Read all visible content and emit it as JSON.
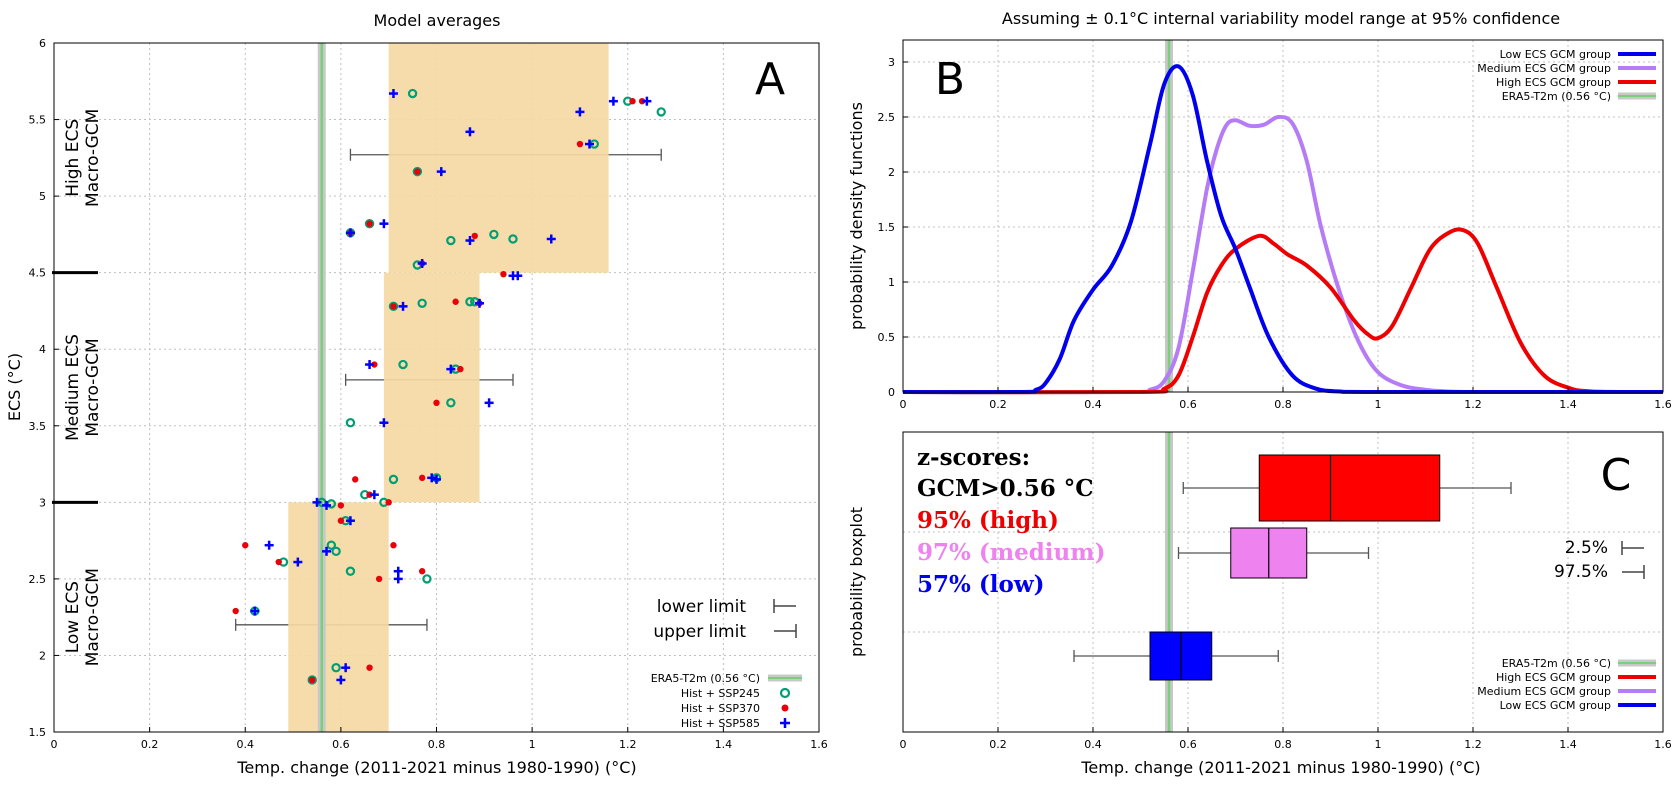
{
  "chart_data": [
    {
      "panel": "A",
      "type": "scatter",
      "title": "Model averages",
      "xlabel": "Temp. change (2011-2021 minus 1980-1990) (°C)",
      "ylabel": "ECS (°C)",
      "xlim": [
        0,
        1.6
      ],
      "ylim": [
        1.5,
        6
      ],
      "xticks": [
        0,
        0.2,
        0.4,
        0.6,
        0.8,
        1,
        1.2,
        1.4,
        1.6
      ],
      "xtick_labels": [
        "0",
        "0.2",
        "0.4",
        "0.6",
        "0.8",
        "1",
        "1.2",
        "1.4",
        "1.6"
      ],
      "yticks": [
        1.5,
        2,
        2.5,
        3,
        3.5,
        4,
        4.5,
        5,
        5.5,
        6
      ],
      "ytick_labels": [
        "1.5",
        "2",
        "2.5",
        "3",
        "3.5",
        "4",
        "4.5",
        "5",
        "5.5",
        "6"
      ],
      "group_labels": [
        {
          "line1": "High ECS",
          "line2": "Macro-GCM",
          "y": 5.25
        },
        {
          "line1": "Medium ECS",
          "line2": "Macro-GCM",
          "y": 3.75
        },
        {
          "line1": "Low ECS",
          "line2": "Macro-GCM",
          "y": 2.25
        }
      ],
      "group_dividers": [
        3.0,
        4.5
      ],
      "era5": 0.56,
      "ranges": [
        {
          "group": "low",
          "ymin": 1.5,
          "ymax": 3.0,
          "box": [
            0.49,
            0.7
          ],
          "whisker": [
            0.38,
            0.78
          ],
          "whisker_y": 2.2
        },
        {
          "group": "medium",
          "ymin": 3.0,
          "ymax": 4.5,
          "box": [
            0.69,
            0.89
          ],
          "whisker": [
            0.61,
            0.96
          ],
          "whisker_y": 3.8
        },
        {
          "group": "high",
          "ymin": 4.5,
          "ymax": 6.0,
          "box": [
            0.7,
            1.16
          ],
          "whisker": [
            0.62,
            1.27
          ],
          "whisker_y": 5.27
        }
      ],
      "limit_legend": {
        "lower": "lower limit",
        "upper": "upper limit"
      },
      "legend": [
        "ERA5-T2m (0.56 °C)",
        "Hist + SSP245",
        "Hist + SSP370",
        "Hist + SSP585"
      ],
      "series": [
        {
          "name": "Hist + SSP245",
          "marker": "circle",
          "color": "#009e73",
          "points": [
            [
              0.75,
              5.67
            ],
            [
              1.2,
              5.62
            ],
            [
              1.27,
              5.55
            ],
            [
              0.76,
              5.16
            ],
            [
              1.13,
              5.34
            ],
            [
              0.62,
              4.76
            ],
            [
              0.66,
              4.82
            ],
            [
              0.76,
              4.55
            ],
            [
              0.83,
              4.71
            ],
            [
              0.92,
              4.75
            ],
            [
              0.96,
              4.72
            ],
            [
              0.87,
              4.31
            ],
            [
              0.88,
              4.31
            ],
            [
              0.77,
              4.3
            ],
            [
              0.71,
              4.28
            ],
            [
              0.73,
              3.9
            ],
            [
              0.84,
              3.87
            ],
            [
              0.62,
              3.52
            ],
            [
              0.83,
              3.65
            ],
            [
              0.71,
              3.15
            ],
            [
              0.8,
              3.16
            ],
            [
              0.65,
              3.05
            ],
            [
              0.69,
              3.0
            ],
            [
              0.58,
              2.99
            ],
            [
              0.56,
              3.0
            ],
            [
              0.61,
              2.88
            ],
            [
              0.58,
              2.72
            ],
            [
              0.59,
              2.68
            ],
            [
              0.62,
              2.55
            ],
            [
              0.78,
              2.5
            ],
            [
              0.42,
              2.29
            ],
            [
              0.48,
              2.61
            ],
            [
              0.59,
              1.92
            ],
            [
              0.54,
              1.84
            ]
          ]
        },
        {
          "name": "Hist + SSP370",
          "marker": "dot",
          "color": "#e8000b",
          "points": [
            [
              1.21,
              5.62
            ],
            [
              1.23,
              5.62
            ],
            [
              1.1,
              5.34
            ],
            [
              0.76,
              5.16
            ],
            [
              0.62,
              4.76
            ],
            [
              0.66,
              4.82
            ],
            [
              0.88,
              4.74
            ],
            [
              0.77,
              4.56
            ],
            [
              0.94,
              4.49
            ],
            [
              0.84,
              4.31
            ],
            [
              0.89,
              4.3
            ],
            [
              0.71,
              4.28
            ],
            [
              0.67,
              3.9
            ],
            [
              0.85,
              3.87
            ],
            [
              0.8,
              3.65
            ],
            [
              0.63,
              3.15
            ],
            [
              0.77,
              3.16
            ],
            [
              0.66,
              3.05
            ],
            [
              0.7,
              3.0
            ],
            [
              0.6,
              2.98
            ],
            [
              0.6,
              2.88
            ],
            [
              0.71,
              2.72
            ],
            [
              0.4,
              2.72
            ],
            [
              0.47,
              2.61
            ],
            [
              0.77,
              2.55
            ],
            [
              0.68,
              2.5
            ],
            [
              0.38,
              2.29
            ],
            [
              0.66,
              1.92
            ],
            [
              0.54,
              1.84
            ]
          ]
        },
        {
          "name": "Hist + SSP585",
          "marker": "plus",
          "color": "#0000ff",
          "points": [
            [
              0.71,
              5.67
            ],
            [
              1.17,
              5.62
            ],
            [
              1.24,
              5.62
            ],
            [
              1.1,
              5.55
            ],
            [
              0.87,
              5.42
            ],
            [
              1.12,
              5.34
            ],
            [
              0.81,
              5.16
            ],
            [
              0.69,
              4.82
            ],
            [
              0.62,
              4.76
            ],
            [
              0.87,
              4.71
            ],
            [
              1.04,
              4.72
            ],
            [
              0.77,
              4.56
            ],
            [
              0.97,
              4.48
            ],
            [
              0.96,
              4.48
            ],
            [
              0.89,
              4.3
            ],
            [
              0.73,
              4.28
            ],
            [
              0.66,
              3.9
            ],
            [
              0.83,
              3.87
            ],
            [
              0.91,
              3.65
            ],
            [
              0.69,
              3.52
            ],
            [
              0.79,
              3.16
            ],
            [
              0.8,
              3.15
            ],
            [
              0.67,
              3.05
            ],
            [
              0.55,
              3.0
            ],
            [
              0.57,
              2.98
            ],
            [
              0.62,
              2.88
            ],
            [
              0.45,
              2.72
            ],
            [
              0.57,
              2.68
            ],
            [
              0.51,
              2.61
            ],
            [
              0.72,
              2.55
            ],
            [
              0.72,
              2.5
            ],
            [
              0.42,
              2.29
            ],
            [
              0.61,
              1.92
            ],
            [
              0.6,
              1.84
            ]
          ]
        }
      ]
    },
    {
      "panel": "B",
      "type": "line",
      "title": "Assuming  ± 0.1°C  internal variability model range at 95% confidence",
      "xlabel": "",
      "ylabel": "probability density functions",
      "xlim": [
        0,
        1.6
      ],
      "ylim": [
        0,
        3.2
      ],
      "xticks": [
        0,
        0.2,
        0.4,
        0.6,
        0.8,
        1,
        1.2,
        1.4,
        1.6
      ],
      "xtick_labels": [
        "0",
        "0.2",
        "0.4",
        "0.6",
        "0.8",
        "1",
        "1.2",
        "1.4",
        "1.6"
      ],
      "yticks": [
        0,
        0.5,
        1,
        1.5,
        2,
        2.5,
        3
      ],
      "ytick_labels": [
        "0",
        "0.5",
        "1",
        "1.5",
        "2",
        "2.5",
        "3"
      ],
      "era5": 0.56,
      "legend": [
        "Low ECS GCM group",
        "Medium ECS GCM group",
        "High ECS GCM group",
        "ERA5-T2m (0.56 °C)"
      ],
      "series": [
        {
          "name": "Low ECS GCM group",
          "color": "#0000ee",
          "x": [
            0,
            0.25,
            0.28,
            0.3,
            0.33,
            0.36,
            0.4,
            0.44,
            0.48,
            0.52,
            0.55,
            0.58,
            0.61,
            0.64,
            0.67,
            0.7,
            0.73,
            0.77,
            0.82,
            0.87,
            0.92,
            1.0,
            1.6
          ],
          "y": [
            0,
            0,
            0.02,
            0.08,
            0.3,
            0.65,
            0.93,
            1.15,
            1.55,
            2.25,
            2.8,
            2.96,
            2.7,
            2.1,
            1.6,
            1.3,
            0.95,
            0.5,
            0.15,
            0.03,
            0.005,
            0,
            0
          ]
        },
        {
          "name": "Medium ECS GCM group",
          "color": "#b57cf5",
          "x": [
            0,
            0.48,
            0.52,
            0.55,
            0.58,
            0.61,
            0.64,
            0.66,
            0.68,
            0.7,
            0.73,
            0.76,
            0.79,
            0.82,
            0.85,
            0.88,
            0.92,
            0.96,
            1.0,
            1.05,
            1.1,
            1.15,
            1.2,
            1.3,
            1.6
          ],
          "y": [
            0,
            0,
            0.02,
            0.1,
            0.4,
            1.1,
            1.85,
            2.2,
            2.42,
            2.47,
            2.42,
            2.43,
            2.5,
            2.44,
            2.1,
            1.5,
            0.9,
            0.45,
            0.18,
            0.06,
            0.02,
            0.005,
            0,
            0,
            0
          ]
        },
        {
          "name": "High ECS GCM group",
          "color": "#ee0000",
          "x": [
            0,
            0.5,
            0.55,
            0.58,
            0.61,
            0.64,
            0.67,
            0.7,
            0.75,
            0.78,
            0.81,
            0.85,
            0.9,
            0.95,
            0.98,
            1.0,
            1.03,
            1.07,
            1.11,
            1.15,
            1.18,
            1.21,
            1.25,
            1.3,
            1.35,
            1.4,
            1.45,
            1.6
          ],
          "y": [
            0,
            0,
            0.03,
            0.15,
            0.5,
            0.9,
            1.15,
            1.3,
            1.42,
            1.35,
            1.25,
            1.15,
            0.95,
            0.65,
            0.52,
            0.49,
            0.6,
            0.95,
            1.3,
            1.45,
            1.47,
            1.35,
            0.95,
            0.45,
            0.15,
            0.04,
            0.005,
            0
          ]
        }
      ]
    },
    {
      "panel": "C",
      "type": "boxplot",
      "xlabel": "Temp. change (2011-2021 minus 1980-1990) (°C)",
      "ylabel": "probability  boxplot",
      "xlim": [
        0,
        1.6
      ],
      "xticks": [
        0,
        0.2,
        0.4,
        0.6,
        0.8,
        1,
        1.2,
        1.4,
        1.6
      ],
      "xtick_labels": [
        "0",
        "0.2",
        "0.4",
        "0.6",
        "0.8",
        "1",
        "1.2",
        "1.4",
        "1.6"
      ],
      "era5": 0.56,
      "legend": [
        "ERA5-T2m (0.56 °C)",
        "High ECS GCM group",
        "Medium ECS GCM group",
        "Low ECS GCM group"
      ],
      "pct_legend": [
        "2.5%",
        "97.5%"
      ],
      "zscores": {
        "title1": "z-scores:",
        "title2": "GCM>0.56 °C",
        "high": "95% (high)",
        "medium": "97% (medium)",
        "low": "57% (low)"
      },
      "boxes": [
        {
          "name": "High ECS GCM group",
          "color": "#ff0000",
          "p2_5": 0.59,
          "q1": 0.75,
          "median": 0.9,
          "q3": 1.13,
          "p97_5": 1.28
        },
        {
          "name": "Medium ECS GCM group",
          "color": "#ee82ee",
          "p2_5": 0.58,
          "q1": 0.69,
          "median": 0.77,
          "q3": 0.85,
          "p97_5": 0.98
        },
        {
          "name": "Low ECS GCM group",
          "color": "#0000ff",
          "p2_5": 0.36,
          "q1": 0.52,
          "median": 0.585,
          "q3": 0.65,
          "p97_5": 0.79
        }
      ]
    }
  ],
  "panel_letters": [
    "A",
    "B",
    "C"
  ],
  "colors": {
    "box_fill": "#f5d9a3",
    "era5_outer": "#c8c8c8",
    "era5_inner": "#7ad07a",
    "grid": "#c0c0c0"
  }
}
